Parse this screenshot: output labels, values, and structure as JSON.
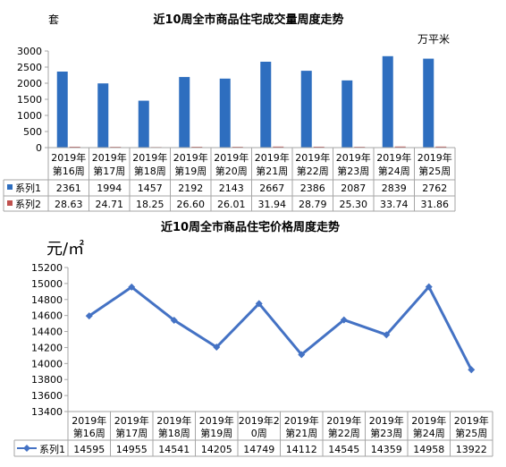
{
  "chart_data": [
    {
      "type": "bar",
      "title": "近10周全市商品住宅成交量周度走势",
      "ylabel_left": "套",
      "ylabel_right": "万平米",
      "ylim": [
        0,
        3000
      ],
      "yticks": [
        "0",
        "500",
        "1000",
        "1500",
        "2000",
        "2500",
        "3000"
      ],
      "categories": [
        [
          "2019年",
          "第16周"
        ],
        [
          "2019年",
          "第17周"
        ],
        [
          "2019年",
          "第18周"
        ],
        [
          "2019年",
          "第19周"
        ],
        [
          "2019年",
          "第20周"
        ],
        [
          "2019年",
          "第21周"
        ],
        [
          "2019年",
          "第22周"
        ],
        [
          "2019年",
          "第23周"
        ],
        [
          "2019年",
          "第24周"
        ],
        [
          "2019年",
          "第25周"
        ]
      ],
      "series": [
        {
          "name": "系列1",
          "color": "#2e6ebf",
          "values": [
            2361,
            1994,
            1457,
            2192,
            2143,
            2667,
            2386,
            2087,
            2839,
            2762
          ],
          "labels": [
            "2361",
            "1994",
            "1457",
            "2192",
            "2143",
            "2667",
            "2386",
            "2087",
            "2839",
            "2762"
          ]
        },
        {
          "name": "系列2",
          "color": "#c0504d",
          "values": [
            28.63,
            24.71,
            18.25,
            26.6,
            26.01,
            31.94,
            28.79,
            25.3,
            33.74,
            31.86
          ],
          "labels": [
            "28.63",
            "24.71",
            "18.25",
            "26.60",
            "26.01",
            "31.94",
            "28.79",
            "25.30",
            "33.74",
            "31.86"
          ]
        }
      ],
      "grid": false,
      "legend": "data-table"
    },
    {
      "type": "line",
      "title": "近10周全市商品住宅价格周度走势",
      "ylabel": "元/㎡",
      "ylim": [
        13400,
        15200
      ],
      "yticks": [
        "13400",
        "13600",
        "13800",
        "14000",
        "14200",
        "14400",
        "14600",
        "14800",
        "15000",
        "15200"
      ],
      "categories": [
        [
          "2019年",
          "第16周"
        ],
        [
          "2019年",
          "第17周"
        ],
        [
          "2019年",
          "第18周"
        ],
        [
          "2019年",
          "第19周"
        ],
        [
          "2019年2",
          "0周"
        ],
        [
          "2019年",
          "第21周"
        ],
        [
          "2019年",
          "第22周"
        ],
        [
          "2019年",
          "第23周"
        ],
        [
          "2019年",
          "第24周"
        ],
        [
          "2019年",
          "第25周"
        ]
      ],
      "series": [
        {
          "name": "系列1",
          "color": "#4472c4",
          "values": [
            14595,
            14955,
            14541,
            14205,
            14749,
            14112,
            14545,
            14359,
            14958,
            13922
          ],
          "labels": [
            "14595",
            "14955",
            "14541",
            "14205",
            "14749",
            "14112",
            "14545",
            "14359",
            "14958",
            "13922"
          ]
        }
      ],
      "grid": false,
      "legend": "data-table"
    }
  ]
}
